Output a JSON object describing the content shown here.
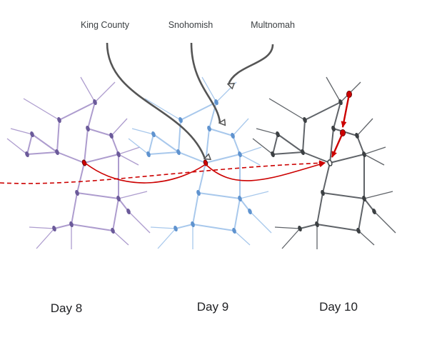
{
  "labels": {
    "counties": [
      "King County",
      "Snohomish",
      "Multnomah"
    ],
    "days": [
      "Day 8",
      "Day 9",
      "Day 10"
    ]
  },
  "colors": {
    "day8_graph": "#a592c9",
    "day8_nodes": "#6b5a9a",
    "day9_graph": "#9fc3ea",
    "day9_nodes": "#5f93cf",
    "day10_graph": "#5f6368",
    "day10_nodes": "#3c4043",
    "highlight": "#cc0000",
    "pointer": "#555555"
  }
}
